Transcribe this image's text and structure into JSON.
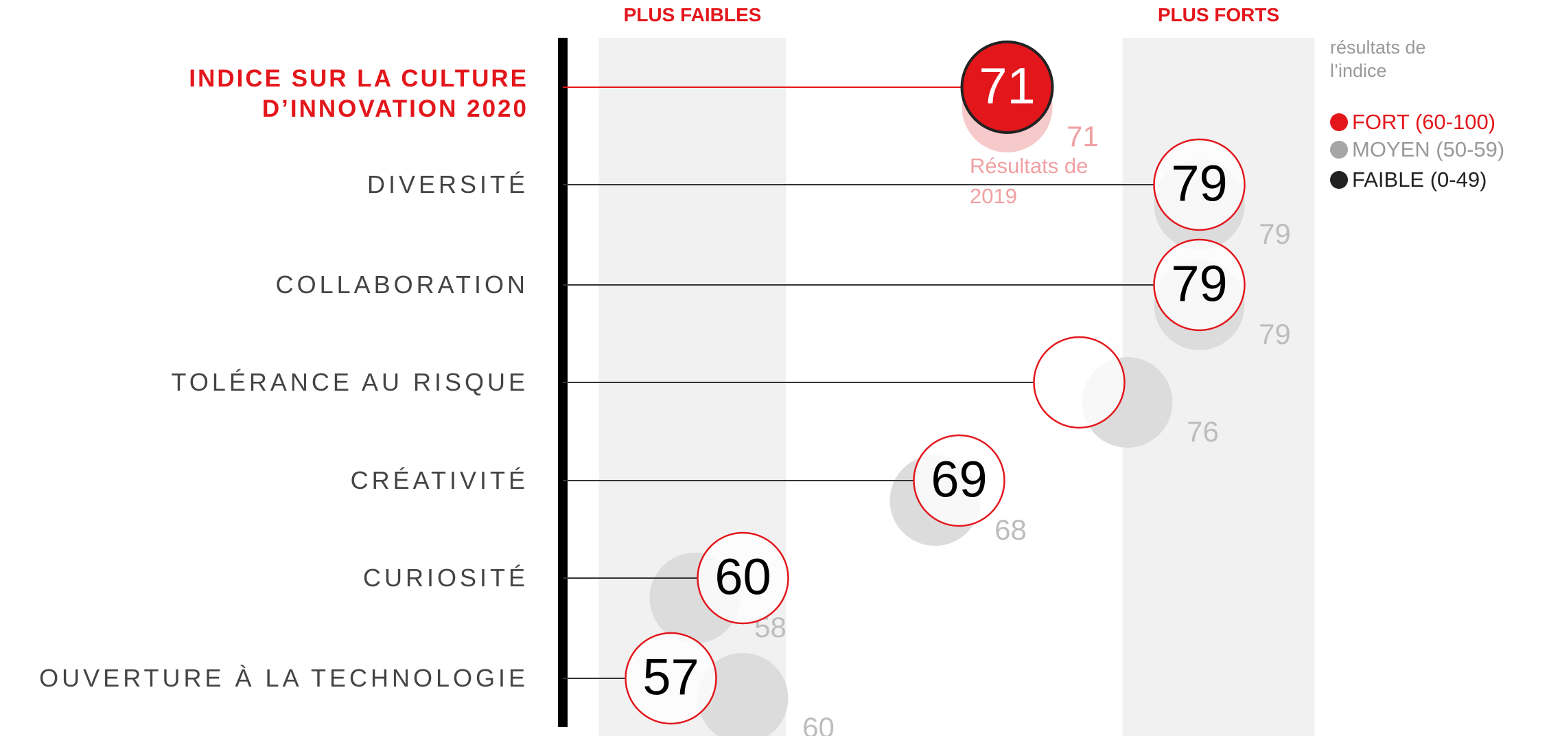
{
  "chart_data": {
    "type": "dot",
    "categories": [
      "INDICE SUR LA CULTURE D’INNOVATION 2020",
      "DIVERSITÉ",
      "COLLABORATION",
      "TOLÉRANCE AU RISQUE",
      "CRÉATIVITÉ",
      "CURIOSITÉ",
      "OUVERTURE À LA TECHNOLOGIE"
    ],
    "series": [
      {
        "values": [
          71,
          79,
          79,
          74,
          69,
          60,
          57
        ],
        "value_labels": [
          "71",
          "79",
          "79",
          null,
          "69",
          "60",
          "57"
        ],
        "color": "#e3161b",
        "fills": [
          "#e3161b",
          "#ffffff",
          "#ffffff",
          "#ffffff",
          "#ffffff",
          "#ffffff",
          "#ffffff"
        ]
      },
      {
        "name": "Résultats de 2019",
        "values": [
          71,
          79,
          79,
          76,
          68,
          58,
          60
        ],
        "colors": [
          "#f6c9ca",
          "#dcdcdc",
          "#dcdcdc",
          "#dcdcdc",
          "#dcdcdc",
          "#dcdcdc",
          "#dcdcdc"
        ],
        "label_colors": [
          "#f0a0a2",
          "#bdbdbd",
          "#bdbdbd",
          "#bdbdbd",
          "#bdbdbd",
          "#bdbdbd",
          "#bdbdbd"
        ]
      }
    ],
    "xlim": [
      52.5,
      86
    ],
    "bands": [
      {
        "label": "PLUS FAIBLES",
        "range": [
          54,
          61.8
        ]
      },
      {
        "label": "PLUS FORTS",
        "range": [
          75.8,
          83.8
        ]
      }
    ],
    "legend": {
      "title": "résultats de l’indice",
      "items": [
        {
          "label": "FORT (60-100)",
          "color": "#e3161b"
        },
        {
          "label": "MOYEN (50-59)",
          "color": "#a6a6a6"
        },
        {
          "label": "FAIBLE (0-49)",
          "color": "#222222"
        }
      ]
    }
  }
}
